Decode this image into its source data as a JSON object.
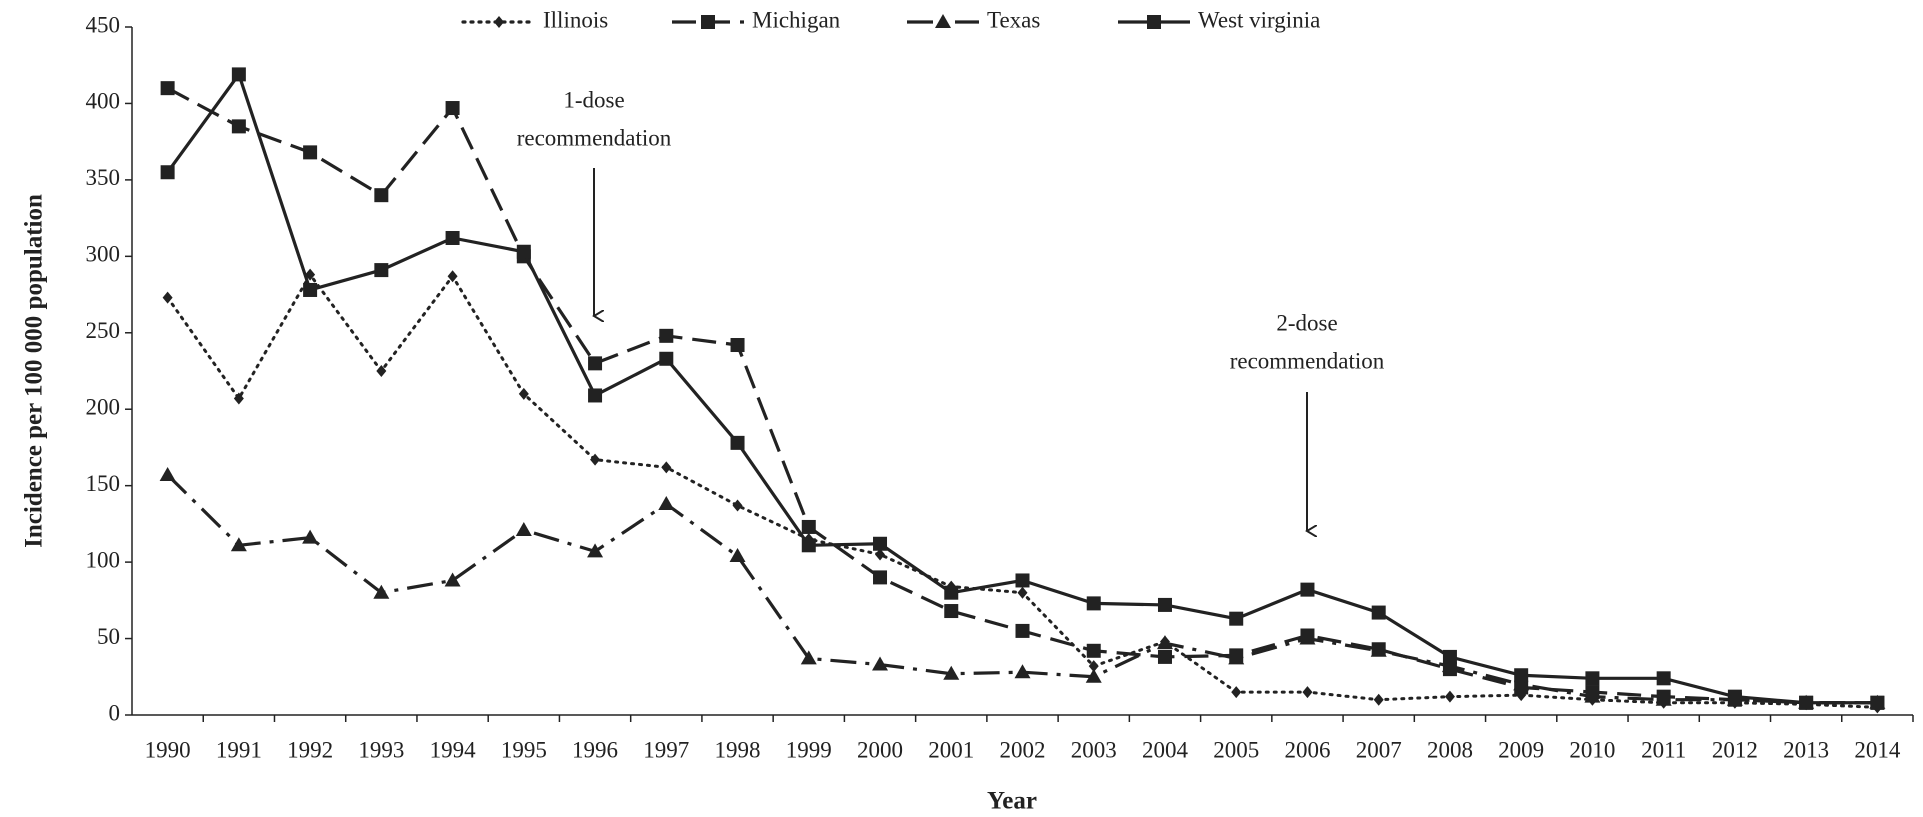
{
  "chart_data": {
    "type": "line",
    "ylabel": "Incidence per 100 000 population",
    "xlabel": "Year",
    "categories": [
      "1990",
      "1991",
      "1992",
      "1993",
      "1994",
      "1995",
      "1996",
      "1997",
      "1998",
      "1999",
      "2000",
      "2001",
      "2002",
      "2003",
      "2004",
      "2005",
      "2006",
      "2007",
      "2008",
      "2009",
      "2010",
      "2011",
      "2012",
      "2013",
      "2014"
    ],
    "ylim": [
      0,
      450
    ],
    "yticks": [
      0,
      50,
      100,
      150,
      200,
      250,
      300,
      350,
      400,
      450
    ],
    "grid": false,
    "legend": "top",
    "series": [
      {
        "name": "Illinois",
        "color": "#222222",
        "line_style": "dotted",
        "marker": "diamond",
        "values": [
          273,
          207,
          288,
          225,
          287,
          210,
          167,
          162,
          137,
          115,
          105,
          84,
          80,
          32,
          48,
          15,
          15,
          10,
          12,
          13,
          10,
          8,
          8,
          7,
          5
        ]
      },
      {
        "name": "Michigan",
        "color": "#222222",
        "line_style": "dashed",
        "marker": "square",
        "values": [
          410,
          385,
          368,
          340,
          397,
          300,
          230,
          248,
          242,
          123,
          90,
          68,
          55,
          42,
          38,
          39,
          52,
          43,
          30,
          18,
          15,
          12,
          10,
          8,
          8
        ]
      },
      {
        "name": "Texas",
        "color": "#222222",
        "line_style": "dashdot",
        "marker": "triangle",
        "values": [
          157,
          111,
          116,
          80,
          88,
          121,
          107,
          138,
          104,
          37,
          33,
          27,
          28,
          25,
          47,
          37,
          50,
          42,
          32,
          20,
          12,
          10,
          10,
          8,
          8
        ]
      },
      {
        "name": "West virginia",
        "color": "#222222",
        "line_style": "solid",
        "marker": "square",
        "values": [
          355,
          419,
          278,
          291,
          312,
          303,
          209,
          233,
          178,
          111,
          112,
          80,
          88,
          73,
          72,
          63,
          82,
          67,
          38,
          26,
          24,
          24,
          12,
          8,
          8
        ]
      }
    ],
    "annotations": [
      [
        "1-dose",
        "recommendation"
      ],
      [
        "2-dose",
        "recommendation"
      ]
    ]
  }
}
